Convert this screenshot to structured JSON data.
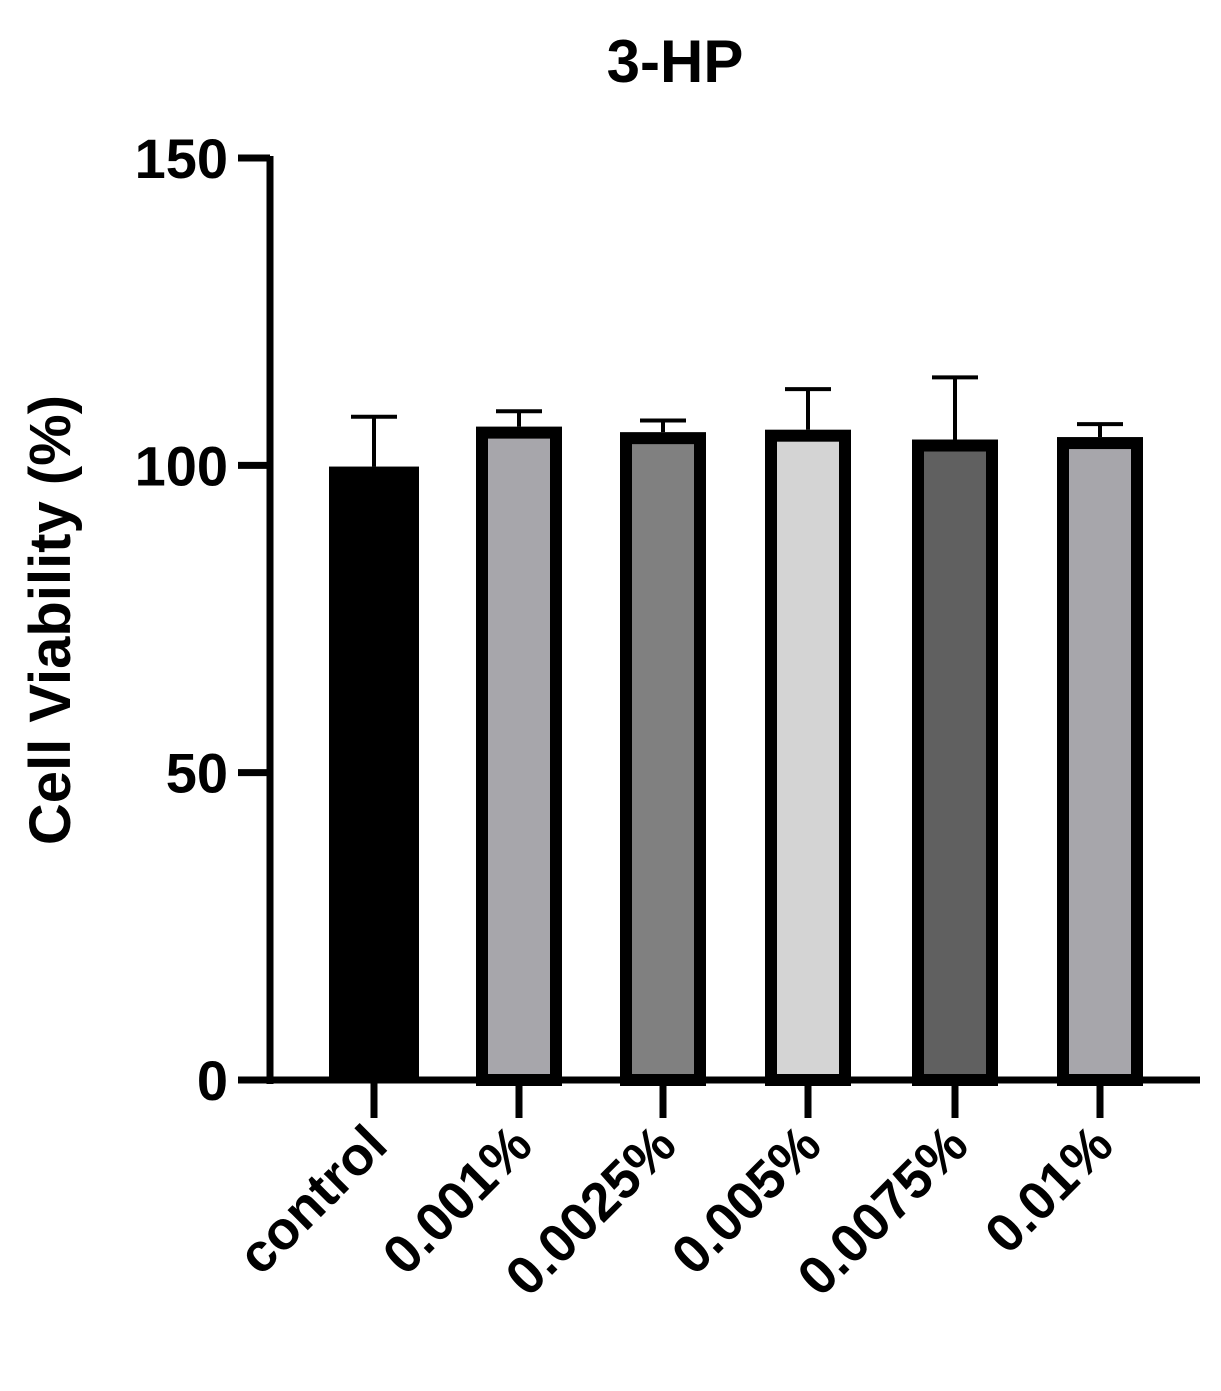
{
  "chart_data": {
    "type": "bar",
    "title": "3-HP",
    "xlabel": "",
    "ylabel": "Cell Viability (%)",
    "ylim": [
      0,
      150
    ],
    "yticks": [
      0,
      50,
      100,
      150
    ],
    "yticks_text": [
      "0",
      "50",
      "100",
      "150"
    ],
    "categories": [
      "control",
      "0.001%",
      "0.0025%",
      "0.005%",
      "0.0075%",
      "0.01%"
    ],
    "values": [
      99.8,
      106.3,
      105.4,
      105.8,
      104.2,
      104.6
    ],
    "errors": [
      8.1,
      2.5,
      1.9,
      6.6,
      10.1,
      2.1
    ],
    "colors": [
      "#000000",
      "#a7a6ab",
      "#808080",
      "#d4d4d4",
      "#606060",
      "#a7a6ab"
    ],
    "grid": false,
    "legend": "none"
  }
}
